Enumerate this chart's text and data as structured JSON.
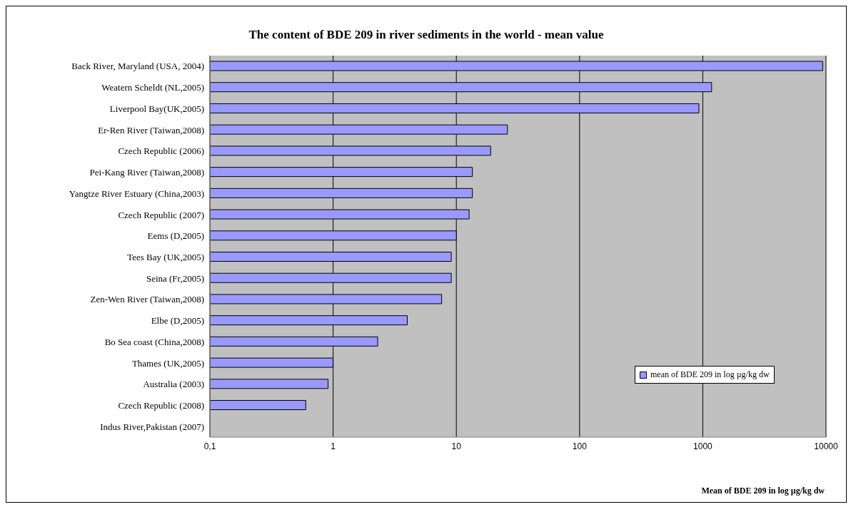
{
  "chart_data": {
    "type": "bar",
    "orientation": "horizontal",
    "title": "The content of BDE 209 in river sediments in the world - mean value",
    "xlabel": "Mean of BDE 209 in log µg/kg dw",
    "categories": [
      "Back River, Maryland (USA, 2004)",
      "Weatern Scheldt (NL,2005)",
      "Liverpool Bay(UK,2005)",
      "Er-Ren River (Taiwan,2008)",
      "Czech Republic (2006)",
      "Pei-Kang River (Taiwan,2008)",
      "Yangtze River Estuary (China,2003)",
      "Czech Republic (2007)",
      "Eems (D,2005)",
      "Tees Bay (UK,2005)",
      "Seina (Fr,2005)",
      "Zen-Wen River (Taiwan,2008)",
      "Elbe (D,2005)",
      "Bo Sea coast (China,2008)",
      "Thames (UK,2005)",
      "Australia (2003)",
      "Czech Republic (2008)",
      "Indus River,Pakistan (2007)"
    ],
    "series": [
      {
        "name": "mean of BDE 209 in log µg/kg dw",
        "color": "#9999ff",
        "values": [
          9400,
          1180,
          930,
          26,
          19,
          13.5,
          13.5,
          12.7,
          10,
          9.1,
          9.1,
          7.6,
          4,
          2.3,
          1,
          0.91,
          0.6,
          null
        ]
      }
    ],
    "xlim": [
      0.1,
      10000
    ],
    "xticks": [
      {
        "value": 0.1,
        "label": "0,1"
      },
      1,
      10,
      100,
      1000,
      10000
    ],
    "log": "x",
    "grid": "x",
    "legend": "right"
  }
}
